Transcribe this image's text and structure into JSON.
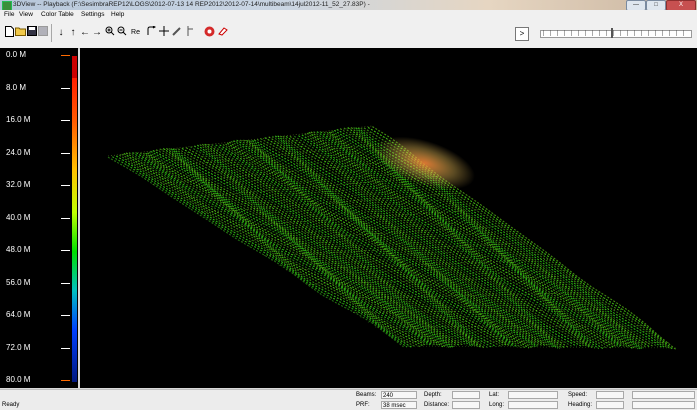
{
  "window": {
    "title": "3DView -- Playback (F:\\SesimbraREP12\\LOGS\\2012-07-13 14 REP2012\\2012-07-14\\multibeam\\14jul2012-11_52_27.83P) -",
    "minimize": "—",
    "maximize": "□",
    "close": "X"
  },
  "menu": [
    "File",
    "View",
    "Color Table",
    "Settings",
    "Help"
  ],
  "toolbar": {
    "expand_label": ">"
  },
  "depth_scale": {
    "labels": [
      "0.0 M",
      "8.0 M",
      "16.0 M",
      "24.0 M",
      "32.0 M",
      "40.0 M",
      "48.0 M",
      "56.0 M",
      "64.0 M",
      "72.0 M",
      "80.0 M"
    ]
  },
  "status": {
    "ready": "Ready",
    "beams_label": "Beams:",
    "beams_value": "240",
    "prf_label": "PRF:",
    "prf_value": "38 msec",
    "depth_label": "Depth:",
    "distance_label": "Distance:",
    "lat_label": "Lat:",
    "long_label": "Long:",
    "speed_label": "Speed:",
    "heading_label": "Heading:"
  }
}
